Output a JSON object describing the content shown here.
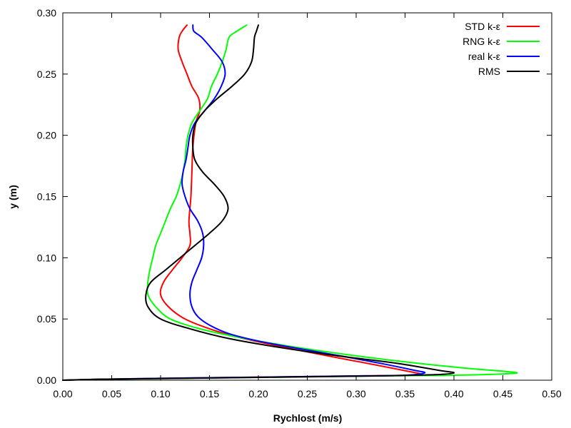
{
  "chart_data": {
    "type": "line",
    "title": "",
    "xlabel": "Rychlost (m/s)",
    "ylabel": "y (m)",
    "xlim": [
      0,
      0.5
    ],
    "ylim": [
      0,
      0.3
    ],
    "x_ticks": [
      "0.00",
      "0.05",
      "0.10",
      "0.15",
      "0.20",
      "0.25",
      "0.30",
      "0.35",
      "0.40",
      "0.45",
      "0.50"
    ],
    "y_ticks": [
      "0.00",
      "0.05",
      "0.10",
      "0.15",
      "0.20",
      "0.25",
      "0.30"
    ],
    "grid": false,
    "legend_position": "top-right",
    "series": [
      {
        "name": "STD k-ε",
        "color": "#ff0000",
        "points": [
          [
            0.0,
            0.0
          ],
          [
            0.04,
            0.0008
          ],
          [
            0.1,
            0.0015
          ],
          [
            0.2,
            0.0025
          ],
          [
            0.3,
            0.0035
          ],
          [
            0.35,
            0.004
          ],
          [
            0.365,
            0.005
          ],
          [
            0.355,
            0.007
          ],
          [
            0.31,
            0.014
          ],
          [
            0.27,
            0.02
          ],
          [
            0.22,
            0.028
          ],
          [
            0.18,
            0.035
          ],
          [
            0.15,
            0.042
          ],
          [
            0.125,
            0.05
          ],
          [
            0.108,
            0.06
          ],
          [
            0.1,
            0.07
          ],
          [
            0.103,
            0.08
          ],
          [
            0.112,
            0.09
          ],
          [
            0.122,
            0.1
          ],
          [
            0.13,
            0.11
          ],
          [
            0.13,
            0.12
          ],
          [
            0.129,
            0.13
          ],
          [
            0.131,
            0.15
          ],
          [
            0.132,
            0.17
          ],
          [
            0.133,
            0.19
          ],
          [
            0.136,
            0.21
          ],
          [
            0.14,
            0.22
          ],
          [
            0.139,
            0.23
          ],
          [
            0.132,
            0.24
          ],
          [
            0.127,
            0.25
          ],
          [
            0.122,
            0.26
          ],
          [
            0.118,
            0.27
          ],
          [
            0.119,
            0.28
          ],
          [
            0.122,
            0.285
          ],
          [
            0.127,
            0.29
          ]
        ]
      },
      {
        "name": "RNG k-ε",
        "color": "#00ff00",
        "points": [
          [
            0.0,
            0.0
          ],
          [
            0.04,
            0.0007
          ],
          [
            0.12,
            0.0015
          ],
          [
            0.22,
            0.0025
          ],
          [
            0.32,
            0.0035
          ],
          [
            0.4,
            0.004
          ],
          [
            0.46,
            0.0055
          ],
          [
            0.455,
            0.007
          ],
          [
            0.41,
            0.01
          ],
          [
            0.35,
            0.015
          ],
          [
            0.29,
            0.021
          ],
          [
            0.23,
            0.028
          ],
          [
            0.18,
            0.035
          ],
          [
            0.14,
            0.042
          ],
          [
            0.11,
            0.05
          ],
          [
            0.095,
            0.06
          ],
          [
            0.087,
            0.07
          ],
          [
            0.087,
            0.08
          ],
          [
            0.089,
            0.09
          ],
          [
            0.092,
            0.1
          ],
          [
            0.095,
            0.11
          ],
          [
            0.1,
            0.12
          ],
          [
            0.105,
            0.13
          ],
          [
            0.11,
            0.14
          ],
          [
            0.116,
            0.15
          ],
          [
            0.12,
            0.16
          ],
          [
            0.123,
            0.17
          ],
          [
            0.125,
            0.18
          ],
          [
            0.126,
            0.19
          ],
          [
            0.128,
            0.2
          ],
          [
            0.132,
            0.21
          ],
          [
            0.14,
            0.22
          ],
          [
            0.148,
            0.23
          ],
          [
            0.152,
            0.24
          ],
          [
            0.158,
            0.25
          ],
          [
            0.163,
            0.26
          ],
          [
            0.167,
            0.27
          ],
          [
            0.17,
            0.28
          ],
          [
            0.178,
            0.285
          ],
          [
            0.188,
            0.29
          ]
        ]
      },
      {
        "name": "real k-ε",
        "color": "#0000ff",
        "points": [
          [
            0.0,
            0.0
          ],
          [
            0.04,
            0.0008
          ],
          [
            0.1,
            0.0015
          ],
          [
            0.2,
            0.0025
          ],
          [
            0.3,
            0.0035
          ],
          [
            0.35,
            0.004
          ],
          [
            0.37,
            0.006
          ],
          [
            0.36,
            0.008
          ],
          [
            0.33,
            0.013
          ],
          [
            0.29,
            0.019
          ],
          [
            0.24,
            0.026
          ],
          [
            0.2,
            0.032
          ],
          [
            0.17,
            0.038
          ],
          [
            0.15,
            0.045
          ],
          [
            0.138,
            0.052
          ],
          [
            0.132,
            0.06
          ],
          [
            0.13,
            0.07
          ],
          [
            0.132,
            0.08
          ],
          [
            0.137,
            0.09
          ],
          [
            0.142,
            0.1
          ],
          [
            0.144,
            0.11
          ],
          [
            0.143,
            0.12
          ],
          [
            0.138,
            0.13
          ],
          [
            0.13,
            0.14
          ],
          [
            0.125,
            0.15
          ],
          [
            0.122,
            0.16
          ],
          [
            0.123,
            0.17
          ],
          [
            0.126,
            0.18
          ],
          [
            0.128,
            0.19
          ],
          [
            0.13,
            0.2
          ],
          [
            0.135,
            0.21
          ],
          [
            0.145,
            0.22
          ],
          [
            0.155,
            0.23
          ],
          [
            0.162,
            0.24
          ],
          [
            0.166,
            0.25
          ],
          [
            0.163,
            0.26
          ],
          [
            0.153,
            0.27
          ],
          [
            0.142,
            0.28
          ],
          [
            0.134,
            0.285
          ],
          [
            0.133,
            0.29
          ]
        ]
      },
      {
        "name": "RMS",
        "color": "#000000",
        "points": [
          [
            0.0,
            0.0
          ],
          [
            0.04,
            0.0008
          ],
          [
            0.12,
            0.0015
          ],
          [
            0.22,
            0.0025
          ],
          [
            0.32,
            0.0035
          ],
          [
            0.38,
            0.0045
          ],
          [
            0.4,
            0.006
          ],
          [
            0.385,
            0.008
          ],
          [
            0.34,
            0.014
          ],
          [
            0.28,
            0.02
          ],
          [
            0.22,
            0.027
          ],
          [
            0.17,
            0.034
          ],
          [
            0.13,
            0.042
          ],
          [
            0.1,
            0.05
          ],
          [
            0.087,
            0.06
          ],
          [
            0.085,
            0.07
          ],
          [
            0.09,
            0.08
          ],
          [
            0.105,
            0.09
          ],
          [
            0.12,
            0.1
          ],
          [
            0.135,
            0.11
          ],
          [
            0.15,
            0.12
          ],
          [
            0.163,
            0.13
          ],
          [
            0.169,
            0.14
          ],
          [
            0.165,
            0.15
          ],
          [
            0.155,
            0.16
          ],
          [
            0.143,
            0.17
          ],
          [
            0.135,
            0.18
          ],
          [
            0.133,
            0.19
          ],
          [
            0.133,
            0.2
          ],
          [
            0.136,
            0.21
          ],
          [
            0.145,
            0.22
          ],
          [
            0.158,
            0.23
          ],
          [
            0.173,
            0.24
          ],
          [
            0.186,
            0.25
          ],
          [
            0.193,
            0.26
          ],
          [
            0.195,
            0.27
          ],
          [
            0.196,
            0.28
          ],
          [
            0.198,
            0.285
          ],
          [
            0.2,
            0.29
          ]
        ]
      }
    ]
  }
}
